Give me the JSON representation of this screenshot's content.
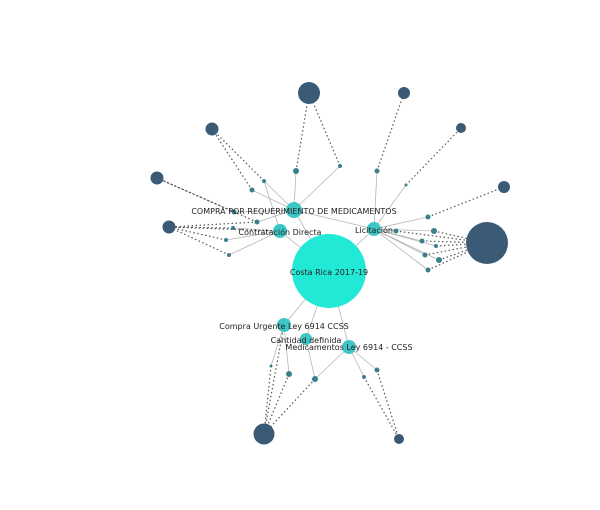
{
  "colors": {
    "center": "#22e8d6",
    "category": "#3ec6c6",
    "small": "#3a7f8a",
    "entity": "#3a5a75",
    "solid_link": "#b5b5b5",
    "dotted_link": "#555555"
  },
  "labels": {
    "center": "Costa Rica 2017-19",
    "compra_requerimiento": "COMPRA POR REQUERIMIENTO DE MEDICAMENTOS",
    "contratacion_directa": "Contratación Directa",
    "licitacion": "Licitación",
    "compra_urgente": "Compra Urgente Ley 6914 CCSS",
    "cantidad_definida": "Cantidad definida",
    "medicamentos": "Medicamentos Ley 6914 - CCSS"
  }
}
